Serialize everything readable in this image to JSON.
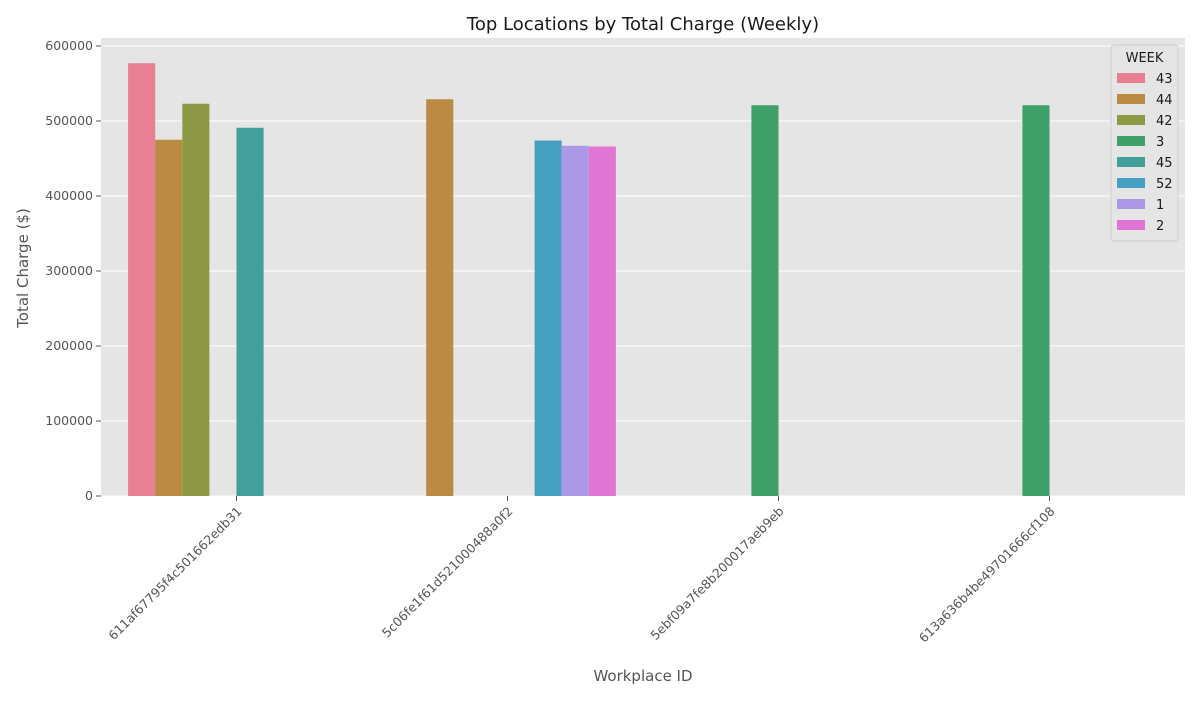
{
  "chart_data": {
    "type": "bar",
    "title": "Top Locations by Total Charge (Weekly)",
    "xlabel": "Workplace ID",
    "ylabel": "Total Charge ($)",
    "ylim": [
      0,
      600000
    ],
    "yticks": [
      0,
      100000,
      200000,
      300000,
      400000,
      500000,
      600000
    ],
    "grid": true,
    "legend": {
      "title": "WEEK",
      "position": "top-right"
    },
    "categories": [
      "611af67795f4c501662edb31",
      "5c06fe1f61d521000488a0f2",
      "5ebf09a7fe8b200017aeb9eb",
      "613a636b4be49701666cf108"
    ],
    "series": [
      {
        "name": "43",
        "color": "#e87f92",
        "values": [
          577000,
          null,
          null,
          null
        ]
      },
      {
        "name": "44",
        "color": "#bb8a43",
        "values": [
          475000,
          529000,
          null,
          null
        ]
      },
      {
        "name": "42",
        "color": "#8d9945",
        "values": [
          523000,
          null,
          null,
          null
        ]
      },
      {
        "name": "3",
        "color": "#3fa06a",
        "values": [
          null,
          null,
          521000,
          521000
        ]
      },
      {
        "name": "45",
        "color": "#429f99",
        "values": [
          491000,
          null,
          null,
          null
        ]
      },
      {
        "name": "52",
        "color": "#479fc1",
        "values": [
          null,
          474000,
          null,
          null
        ]
      },
      {
        "name": "1",
        "color": "#ab98e6",
        "values": [
          null,
          467000,
          null,
          null
        ]
      },
      {
        "name": "2",
        "color": "#e075d5",
        "values": [
          null,
          466000,
          null,
          null
        ]
      }
    ]
  }
}
